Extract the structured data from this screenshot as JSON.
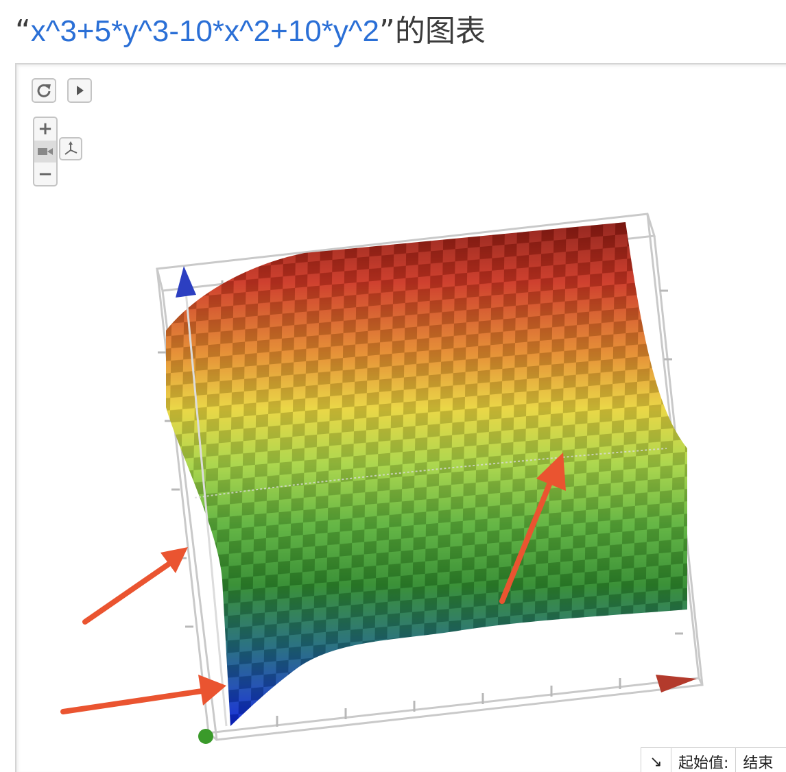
{
  "header": {
    "open_quote": "“",
    "formula": "x^3+5*y^3-10*x^2+10*y^2",
    "close_quote": "”",
    "suffix": "的图表"
  },
  "toolbar": {
    "buttons": [
      "refresh-icon",
      "play-icon"
    ],
    "zoom_in_label": "+",
    "zoom_out_label": "−",
    "camera_icon": "camera-icon",
    "axes_icon": "axes-icon"
  },
  "range_bar": {
    "corner_icon": "↘",
    "start_label": "起始值:",
    "end_label": "结束"
  },
  "colors": {
    "formula": "#2a6fd6",
    "annotation_arrow": "#ea5430",
    "x_axis": "#b33a2c",
    "z_axis": "#2c3fc1",
    "origin": "#3a9a2a"
  }
}
